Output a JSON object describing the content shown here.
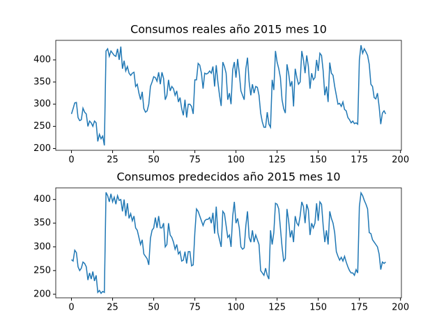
{
  "chart_data": [
    {
      "type": "line",
      "title": "Consumos reales año 2015 mes 10",
      "series": [
        {
          "color": "#1f77b4",
          "values": [
            278,
            290,
            303,
            304,
            270,
            263,
            265,
            291,
            282,
            278,
            250,
            262,
            258,
            250,
            262,
            258,
            216,
            232,
            222,
            228,
            207,
            420,
            425,
            408,
            420,
            415,
            410,
            408,
            425,
            400,
            430,
            380,
            398,
            375,
            385,
            370,
            365,
            370,
            372,
            340,
            345,
            325,
            310,
            328,
            290,
            282,
            285,
            300,
            340,
            350,
            362,
            360,
            352,
            372,
            345,
            372,
            358,
            310,
            320,
            355,
            330,
            340,
            335,
            320,
            330,
            305,
            315,
            290,
            275,
            310,
            270,
            300,
            300,
            295,
            278,
            355,
            355,
            392,
            388,
            370,
            335,
            370,
            368,
            370,
            375,
            370,
            385,
            340,
            388,
            350,
            320,
            296,
            395,
            385,
            370,
            310,
            325,
            300,
            378,
            395,
            360,
            402,
            370,
            330,
            320,
            310,
            380,
            405,
            350,
            320,
            345,
            325,
            340,
            338,
            320,
            280,
            260,
            248,
            248,
            282,
            255,
            248,
            355,
            332,
            420,
            395,
            380,
            360,
            310,
            290,
            280,
            390,
            370,
            340,
            352,
            295,
            380,
            360,
            345,
            350,
            420,
            400,
            370,
            410,
            385,
            335,
            370,
            355,
            360,
            400,
            375,
            415,
            410,
            375,
            320,
            340,
            305,
            394,
            370,
            365,
            340,
            320,
            300,
            302,
            295,
            305,
            288,
            285,
            270,
            265,
            258,
            262,
            256,
            258,
            255,
            400,
            433,
            415,
            425,
            418,
            410,
            390,
            345,
            340,
            315,
            312,
            325,
            295,
            255,
            280,
            285,
            278
          ]
        }
      ],
      "xlim": [
        -9.55,
        200.55
      ],
      "xticks": [
        0,
        25,
        50,
        75,
        100,
        125,
        150,
        175,
        200
      ],
      "ylim": [
        196,
        444
      ],
      "yticks": [
        200,
        250,
        300,
        350,
        400
      ]
    },
    {
      "type": "line",
      "title": "Consumos predecidos año 2015 mes 10",
      "series": [
        {
          "color": "#1f77b4",
          "values": [
            273,
            270,
            293,
            288,
            258,
            250,
            255,
            268,
            265,
            258,
            230,
            245,
            232,
            248,
            228,
            240,
            204,
            208,
            202,
            206,
            204,
            415,
            408,
            395,
            412,
            395,
            405,
            390,
            408,
            398,
            400,
            375,
            400,
            365,
            392,
            360,
            370,
            355,
            365,
            340,
            335,
            320,
            305,
            315,
            285,
            280,
            275,
            262,
            318,
            335,
            340,
            362,
            340,
            365,
            340,
            340,
            350,
            300,
            305,
            350,
            325,
            320,
            310,
            295,
            305,
            285,
            290,
            270,
            272,
            290,
            265,
            290,
            290,
            260,
            262,
            330,
            380,
            375,
            365,
            355,
            345,
            355,
            358,
            358,
            362,
            350,
            372,
            328,
            385,
            330,
            315,
            300,
            375,
            370,
            345,
            320,
            325,
            300,
            365,
            395,
            350,
            360,
            340,
            300,
            295,
            298,
            345,
            375,
            320,
            310,
            335,
            310,
            325,
            315,
            305,
            250,
            245,
            240,
            255,
            240,
            232,
            335,
            305,
            330,
            392,
            390,
            380,
            340,
            300,
            270,
            275,
            380,
            355,
            320,
            335,
            310,
            365,
            350,
            345,
            365,
            395,
            385,
            350,
            390,
            378,
            325,
            350,
            340,
            350,
            392,
            355,
            395,
            390,
            345,
            310,
            335,
            305,
            375,
            360,
            350,
            330,
            290,
            280,
            272,
            278,
            270,
            280,
            268,
            258,
            250,
            245,
            245,
            240,
            252,
            245,
            385,
            414,
            408,
            398,
            390,
            380,
            330,
            328,
            315,
            310,
            305,
            300,
            285,
            252,
            268,
            265,
            268
          ]
        }
      ],
      "xlim": [
        -9.55,
        200.55
      ],
      "xticks": [
        0,
        25,
        50,
        75,
        100,
        125,
        150,
        175,
        200
      ],
      "ylim": [
        192.5,
        424.5
      ],
      "yticks": [
        200,
        250,
        300,
        350,
        400
      ]
    }
  ]
}
